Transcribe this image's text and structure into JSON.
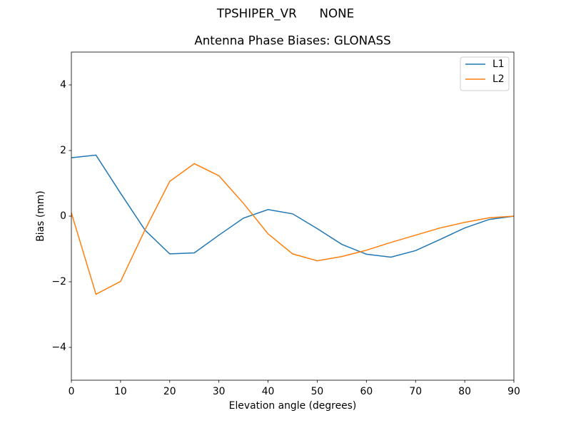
{
  "chart_data": {
    "type": "line",
    "suptitle": "TPSHIPER_VR      NONE",
    "title": "Antenna Phase Biases: GLONASS",
    "xlabel": "Elevation angle (degrees)",
    "ylabel": "Bias (mm)",
    "x": [
      0,
      5,
      10,
      15,
      20,
      25,
      30,
      35,
      40,
      45,
      50,
      55,
      60,
      65,
      70,
      75,
      80,
      85,
      90
    ],
    "series": [
      {
        "name": "L1",
        "color": "#1f77b4",
        "values": [
          1.78,
          1.86,
          0.7,
          -0.43,
          -1.15,
          -1.12,
          -0.58,
          -0.06,
          0.2,
          0.07,
          -0.38,
          -0.86,
          -1.16,
          -1.25,
          -1.05,
          -0.71,
          -0.36,
          -0.1,
          0
        ]
      },
      {
        "name": "L2",
        "color": "#ff7f0e",
        "values": [
          0.1,
          -2.38,
          -1.99,
          -0.41,
          1.06,
          1.6,
          1.23,
          0.39,
          -0.54,
          -1.15,
          -1.36,
          -1.23,
          -1.04,
          -0.8,
          -0.58,
          -0.36,
          -0.19,
          -0.05,
          0
        ]
      }
    ],
    "xlim": [
      0,
      90
    ],
    "xticks": [
      0,
      10,
      20,
      30,
      40,
      50,
      60,
      70,
      80,
      90
    ],
    "ylim": [
      -5,
      5
    ],
    "yticks": [
      {
        "value": -4,
        "label": "−4"
      },
      {
        "value": -2,
        "label": "−2"
      },
      0,
      2,
      4
    ],
    "legend": "upper right",
    "grid": false
  }
}
